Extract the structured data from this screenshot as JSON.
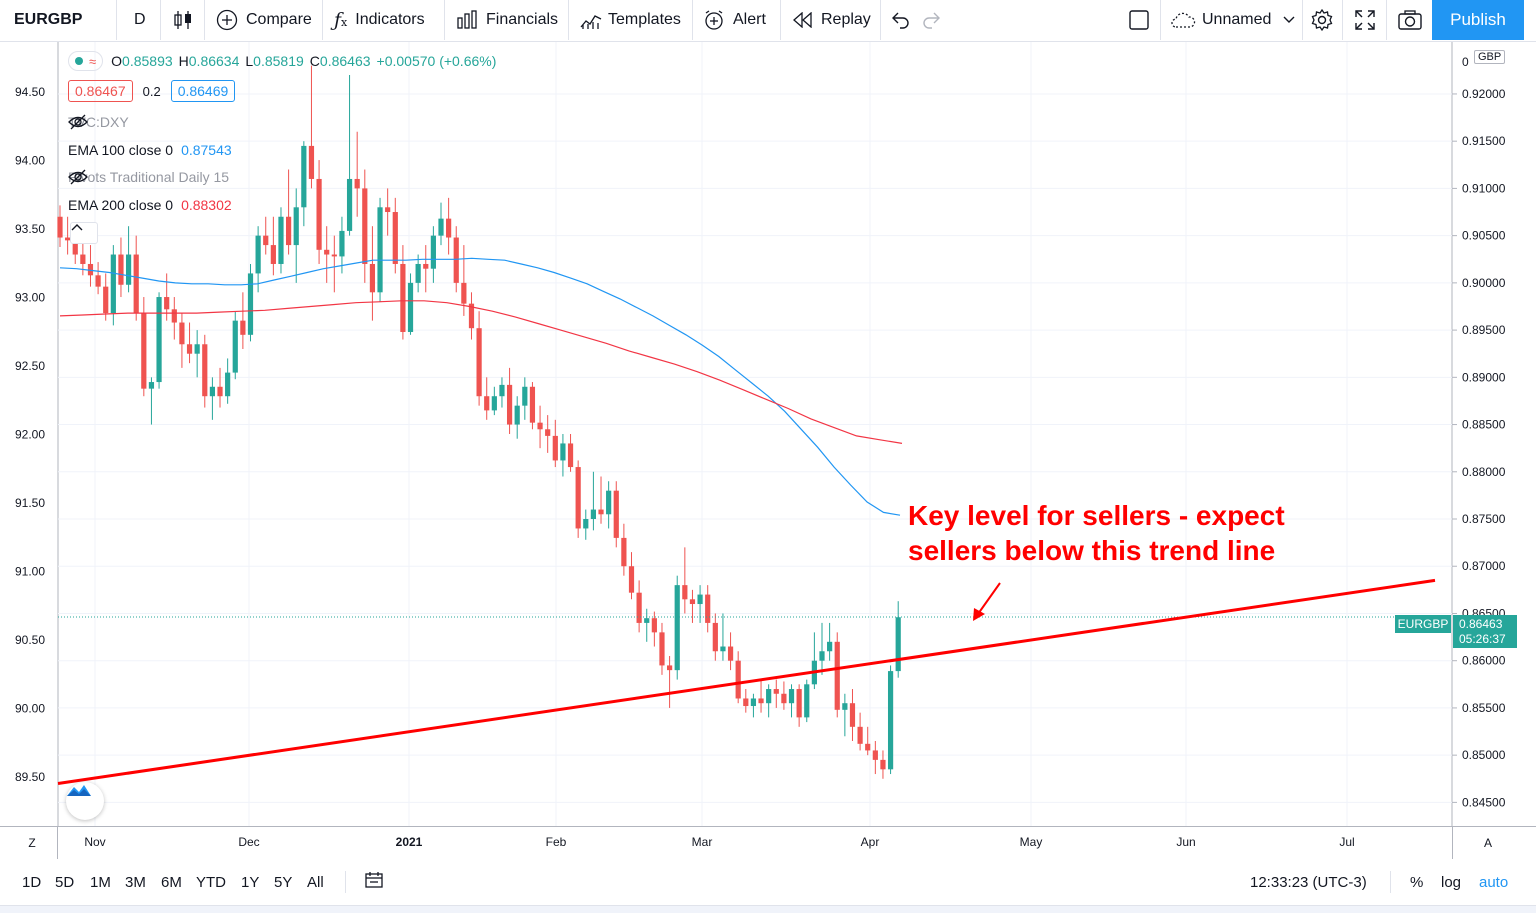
{
  "toolbar": {
    "symbol": "EURGBP",
    "interval": "D",
    "compare_label": "Compare",
    "indicators_label": "Indicators",
    "financials_label": "Financials",
    "templates_label": "Templates",
    "alert_label": "Alert",
    "replay_label": "Replay",
    "layout_name": "Unnamed",
    "publish_label": "Publish"
  },
  "legend": {
    "ohlc": {
      "o_label": "O",
      "o": "0.85893",
      "h_label": "H",
      "h": "0.86634",
      "l_label": "L",
      "l": "0.85819",
      "c_label": "C",
      "c": "0.86463",
      "change": "+0.00570 (+0.66%)"
    },
    "bid": "0.86467",
    "spread": "0.2",
    "ask": "0.86469",
    "indicators": [
      {
        "name": "TVC:DXY",
        "value": ""
      },
      {
        "name": "EMA 100 close 0",
        "value": "0.87543"
      },
      {
        "name": "Pivots Traditional Daily 15",
        "value": ""
      },
      {
        "name": "EMA 200 close 0",
        "value": "0.88302"
      }
    ]
  },
  "colors": {
    "up": "#26a69a",
    "down": "#ef5350",
    "ema100": "#2196f3",
    "ema200": "#f23645",
    "trendline": "#ff0000",
    "accent": "#2196f3"
  },
  "left_axis_labels": [
    "94.50",
    "94.00",
    "93.50",
    "93.00",
    "92.50",
    "92.00",
    "91.50",
    "91.00",
    "90.50",
    "90.00",
    "89.50"
  ],
  "right_axis": {
    "currency": "GBP",
    "top_label": "0",
    "labels": [
      "0.92000",
      "0.91500",
      "0.91000",
      "0.90500",
      "0.90000",
      "0.89500",
      "0.89000",
      "0.88500",
      "0.88000",
      "0.87500",
      "0.87000",
      "0.86500",
      "0.86000",
      "0.85500",
      "0.85000",
      "0.84500"
    ],
    "last_price_symbol": "EURGBP",
    "last_price": "0.86463",
    "countdown": "05:26:37"
  },
  "time_axis": {
    "z_label": "Z",
    "a_label": "A",
    "labels": [
      "Nov",
      "Dec",
      "2021",
      "Feb",
      "Mar",
      "Apr",
      "May",
      "Jun",
      "Jul"
    ]
  },
  "annotation": {
    "line1": "Key level for sellers - expect",
    "line2": "sellers below this trend line"
  },
  "bottom_bar": {
    "ranges": [
      "1D",
      "5D",
      "1M",
      "3M",
      "6M",
      "YTD",
      "1Y",
      "5Y",
      "All"
    ],
    "time": "12:33:23 (UTC-3)",
    "percent_label": "%",
    "log_label": "log",
    "auto_label": "auto"
  },
  "chart_data": {
    "type": "candlestick",
    "symbol": "EURGBP",
    "interval": "D",
    "ylim": [
      0.8425,
      0.9255
    ],
    "x_labels": [
      "Nov",
      "Dec",
      "2021",
      "Feb",
      "Mar",
      "Apr",
      "May",
      "Jun",
      "Jul"
    ],
    "candles": [
      [
        0.907,
        0.9082,
        0.9038,
        0.9048
      ],
      [
        0.9048,
        0.907,
        0.903,
        0.9045
      ],
      [
        0.9045,
        0.9058,
        0.902,
        0.903
      ],
      [
        0.903,
        0.9052,
        0.9008,
        0.902
      ],
      [
        0.902,
        0.904,
        0.8996,
        0.9008
      ],
      [
        0.9008,
        0.9022,
        0.8988,
        0.8996
      ],
      [
        0.8996,
        0.901,
        0.896,
        0.8968
      ],
      [
        0.8968,
        0.904,
        0.8955,
        0.903
      ],
      [
        0.903,
        0.9048,
        0.8985,
        0.8998
      ],
      [
        0.8998,
        0.906,
        0.899,
        0.903
      ],
      [
        0.903,
        0.905,
        0.896,
        0.8968
      ],
      [
        0.8968,
        0.8985,
        0.888,
        0.8888
      ],
      [
        0.8888,
        0.89,
        0.885,
        0.8895
      ],
      [
        0.8895,
        0.899,
        0.8888,
        0.8985
      ],
      [
        0.8985,
        0.901,
        0.896,
        0.8972
      ],
      [
        0.8972,
        0.8985,
        0.894,
        0.8958
      ],
      [
        0.8958,
        0.8968,
        0.891,
        0.8935
      ],
      [
        0.8935,
        0.8958,
        0.8915,
        0.8925
      ],
      [
        0.8925,
        0.895,
        0.89,
        0.8935
      ],
      [
        0.8935,
        0.8945,
        0.8868,
        0.888
      ],
      [
        0.888,
        0.89,
        0.8855,
        0.889
      ],
      [
        0.889,
        0.891,
        0.8868,
        0.888
      ],
      [
        0.888,
        0.892,
        0.8872,
        0.8905
      ],
      [
        0.8905,
        0.897,
        0.8898,
        0.896
      ],
      [
        0.896,
        0.899,
        0.893,
        0.8945
      ],
      [
        0.8945,
        0.902,
        0.8938,
        0.901
      ],
      [
        0.901,
        0.906,
        0.899,
        0.905
      ],
      [
        0.905,
        0.907,
        0.903,
        0.904
      ],
      [
        0.904,
        0.907,
        0.9008,
        0.902
      ],
      [
        0.902,
        0.908,
        0.901,
        0.907
      ],
      [
        0.907,
        0.912,
        0.903,
        0.904
      ],
      [
        0.904,
        0.91,
        0.9,
        0.908
      ],
      [
        0.908,
        0.915,
        0.906,
        0.9145
      ],
      [
        0.9145,
        0.923,
        0.91,
        0.911
      ],
      [
        0.911,
        0.913,
        0.902,
        0.9035
      ],
      [
        0.9035,
        0.906,
        0.9,
        0.903
      ],
      [
        0.903,
        0.905,
        0.899,
        0.9028
      ],
      [
        0.9028,
        0.907,
        0.901,
        0.9055
      ],
      [
        0.9055,
        0.922,
        0.905,
        0.911
      ],
      [
        0.911,
        0.916,
        0.907,
        0.91
      ],
      [
        0.91,
        0.912,
        0.9,
        0.902
      ],
      [
        0.902,
        0.906,
        0.896,
        0.899
      ],
      [
        0.899,
        0.909,
        0.898,
        0.908
      ],
      [
        0.908,
        0.91,
        0.905,
        0.9075
      ],
      [
        0.9075,
        0.909,
        0.901,
        0.902
      ],
      [
        0.902,
        0.904,
        0.894,
        0.8948
      ],
      [
        0.8948,
        0.901,
        0.8945,
        0.9
      ],
      [
        0.9,
        0.903,
        0.899,
        0.902
      ],
      [
        0.902,
        0.904,
        0.899,
        0.9015
      ],
      [
        0.9015,
        0.906,
        0.9,
        0.905
      ],
      [
        0.905,
        0.9085,
        0.904,
        0.9068
      ],
      [
        0.9068,
        0.909,
        0.903,
        0.9048
      ],
      [
        0.9048,
        0.906,
        0.899,
        0.9
      ],
      [
        0.9,
        0.904,
        0.8965,
        0.8978
      ],
      [
        0.8978,
        0.899,
        0.894,
        0.8952
      ],
      [
        0.8952,
        0.897,
        0.887,
        0.888
      ],
      [
        0.888,
        0.89,
        0.8855,
        0.8865
      ],
      [
        0.8865,
        0.889,
        0.886,
        0.888
      ],
      [
        0.888,
        0.89,
        0.8868,
        0.8892
      ],
      [
        0.8892,
        0.891,
        0.884,
        0.885
      ],
      [
        0.885,
        0.888,
        0.8835,
        0.887
      ],
      [
        0.887,
        0.89,
        0.8855,
        0.889
      ],
      [
        0.889,
        0.8895,
        0.8845,
        0.8852
      ],
      [
        0.8852,
        0.887,
        0.8825,
        0.8845
      ],
      [
        0.8845,
        0.886,
        0.882,
        0.8838
      ],
      [
        0.8838,
        0.8855,
        0.8805,
        0.8812
      ],
      [
        0.8812,
        0.884,
        0.8795,
        0.883
      ],
      [
        0.883,
        0.884,
        0.88,
        0.8805
      ],
      [
        0.8805,
        0.8812,
        0.873,
        0.874
      ],
      [
        0.874,
        0.876,
        0.8728,
        0.875
      ],
      [
        0.875,
        0.88,
        0.8738,
        0.876
      ],
      [
        0.876,
        0.8795,
        0.8745,
        0.8755
      ],
      [
        0.8755,
        0.879,
        0.874,
        0.878
      ],
      [
        0.878,
        0.879,
        0.872,
        0.873
      ],
      [
        0.873,
        0.8745,
        0.869,
        0.87
      ],
      [
        0.87,
        0.8715,
        0.8665,
        0.8672
      ],
      [
        0.8672,
        0.8685,
        0.863,
        0.864
      ],
      [
        0.864,
        0.8655,
        0.862,
        0.8645
      ],
      [
        0.8645,
        0.8652,
        0.8615,
        0.863
      ],
      [
        0.863,
        0.864,
        0.8585,
        0.8595
      ],
      [
        0.8595,
        0.8605,
        0.855,
        0.859
      ],
      [
        0.859,
        0.869,
        0.858,
        0.868
      ],
      [
        0.868,
        0.872,
        0.865,
        0.8665
      ],
      [
        0.8665,
        0.8675,
        0.864,
        0.866
      ],
      [
        0.866,
        0.868,
        0.864,
        0.867
      ],
      [
        0.867,
        0.868,
        0.863,
        0.864
      ],
      [
        0.864,
        0.865,
        0.86,
        0.861
      ],
      [
        0.861,
        0.865,
        0.86,
        0.8615
      ],
      [
        0.8615,
        0.863,
        0.859,
        0.86
      ],
      [
        0.86,
        0.861,
        0.8555,
        0.856
      ],
      [
        0.856,
        0.857,
        0.8545,
        0.8552
      ],
      [
        0.8552,
        0.8565,
        0.854,
        0.856
      ],
      [
        0.856,
        0.858,
        0.8545,
        0.8555
      ],
      [
        0.8555,
        0.8575,
        0.854,
        0.857
      ],
      [
        0.857,
        0.858,
        0.855,
        0.8565
      ],
      [
        0.8565,
        0.8578,
        0.8548,
        0.8555
      ],
      [
        0.8555,
        0.8575,
        0.854,
        0.857
      ],
      [
        0.857,
        0.8575,
        0.853,
        0.854
      ],
      [
        0.854,
        0.858,
        0.8535,
        0.8575
      ],
      [
        0.8575,
        0.863,
        0.857,
        0.86
      ],
      [
        0.86,
        0.864,
        0.8585,
        0.861
      ],
      [
        0.861,
        0.864,
        0.86,
        0.862
      ],
      [
        0.862,
        0.863,
        0.854,
        0.8548
      ],
      [
        0.8548,
        0.8565,
        0.852,
        0.8555
      ],
      [
        0.8555,
        0.857,
        0.8515,
        0.853
      ],
      [
        0.853,
        0.8545,
        0.8505,
        0.8512
      ],
      [
        0.8512,
        0.853,
        0.85,
        0.8505
      ],
      [
        0.8505,
        0.8515,
        0.848,
        0.8495
      ],
      [
        0.8495,
        0.8505,
        0.8475,
        0.8485
      ],
      [
        0.8485,
        0.8595,
        0.848,
        0.8589
      ],
      [
        0.8589,
        0.8663,
        0.8582,
        0.8646
      ]
    ],
    "series": [
      {
        "name": "EMA 100 close 0",
        "type": "line",
        "values": [
          0.9016,
          0.9015,
          0.9013,
          0.9011,
          0.9008,
          0.9005,
          0.9002,
          0.9,
          0.8999,
          0.8999,
          0.8998,
          0.8998,
          0.8999,
          0.9003,
          0.9007,
          0.9011,
          0.9015,
          0.9018,
          0.9021,
          0.9024,
          0.9024,
          0.9024,
          0.9025,
          0.9025,
          0.9025,
          0.9026,
          0.9025,
          0.9024,
          0.902,
          0.9016,
          0.9011,
          0.9005,
          0.8999,
          0.8991,
          0.8983,
          0.8974,
          0.8965,
          0.8955,
          0.8945,
          0.8934,
          0.8922,
          0.8908,
          0.8894,
          0.888,
          0.8864,
          0.8845,
          0.8826,
          0.8805,
          0.8786,
          0.8768,
          0.8757,
          0.8754
        ]
      },
      {
        "name": "EMA 200 close 0",
        "type": "line",
        "values": [
          0.8965,
          0.8966,
          0.8967,
          0.8968,
          0.8968,
          0.8968,
          0.8968,
          0.8969,
          0.897,
          0.8971,
          0.8973,
          0.8975,
          0.8977,
          0.8979,
          0.898,
          0.8981,
          0.8981,
          0.8979,
          0.8975,
          0.897,
          0.8964,
          0.8957,
          0.895,
          0.8943,
          0.8936,
          0.8928,
          0.8921,
          0.8914,
          0.8906,
          0.8897,
          0.8887,
          0.8877,
          0.8867,
          0.8856,
          0.8847,
          0.8838,
          0.8834,
          0.883
        ]
      },
      {
        "name": "Trend line",
        "type": "line",
        "x": [
          0,
          1
        ],
        "values": [
          0.847,
          0.8685
        ]
      }
    ],
    "last_price": 0.86463
  }
}
